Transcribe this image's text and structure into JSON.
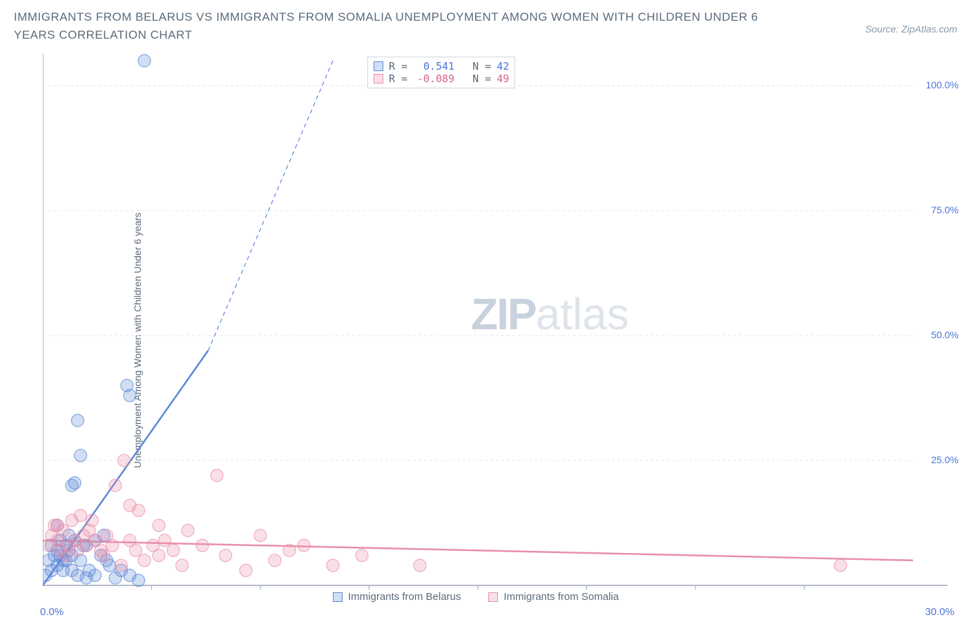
{
  "header": {
    "title": "IMMIGRANTS FROM BELARUS VS IMMIGRANTS FROM SOMALIA UNEMPLOYMENT AMONG WOMEN WITH CHILDREN UNDER 6 YEARS CORRELATION CHART",
    "source": "Source: ZipAtlas.com"
  },
  "ylabel": "Unemployment Among Women with Children Under 6 years",
  "watermark": {
    "bold": "ZIP",
    "light": "atlas"
  },
  "chart": {
    "type": "scatter",
    "xlim": [
      0,
      30
    ],
    "ylim": [
      0,
      105
    ],
    "xticks": [
      0,
      30
    ],
    "xtick_labels": [
      "0.0%",
      "30.0%"
    ],
    "yticks": [
      25,
      50,
      75,
      100
    ],
    "ytick_labels": [
      "25.0%",
      "50.0%",
      "75.0%",
      "100.0%"
    ],
    "minor_xticks": [
      3.75,
      7.5,
      11.25,
      15,
      18.75,
      22.5,
      26.25
    ],
    "grid_color": "#e2e6ec",
    "axis_color": "#9aa6b4",
    "background_color": "#ffffff",
    "marker_radius": 9,
    "marker_fill_opacity": 0.28,
    "marker_stroke_opacity": 0.7,
    "series": [
      {
        "key": "belarus",
        "label": "Immigrants from Belarus",
        "color": "#5b87d6",
        "R": "0.541",
        "N": "42",
        "trend": {
          "x1": 0,
          "y1": 0,
          "x2": 5.7,
          "y2": 47,
          "x2_dash": 10,
          "y2_dash": 105
        },
        "points": [
          [
            0.1,
            2
          ],
          [
            0.2,
            5
          ],
          [
            0.3,
            8
          ],
          [
            0.3,
            3
          ],
          [
            0.4,
            6
          ],
          [
            0.5,
            7
          ],
          [
            0.5,
            12
          ],
          [
            0.6,
            9
          ],
          [
            0.7,
            5
          ],
          [
            0.8,
            8
          ],
          [
            0.9,
            10
          ],
          [
            1.0,
            3
          ],
          [
            1.0,
            6
          ],
          [
            1.1,
            9
          ],
          [
            1.2,
            2
          ],
          [
            1.3,
            5
          ],
          [
            1.4,
            8
          ],
          [
            1.5,
            1.5
          ],
          [
            1.6,
            3
          ],
          [
            1.8,
            2
          ],
          [
            2.0,
            6
          ],
          [
            2.1,
            10
          ],
          [
            2.3,
            4
          ],
          [
            2.5,
            1.5
          ],
          [
            2.7,
            3
          ],
          [
            3.0,
            2
          ],
          [
            3.3,
            1
          ],
          [
            1.0,
            20
          ],
          [
            1.1,
            20.5
          ],
          [
            1.2,
            33
          ],
          [
            1.3,
            26
          ],
          [
            2.9,
            40
          ],
          [
            3.0,
            38
          ],
          [
            3.5,
            105
          ],
          [
            0.5,
            4
          ],
          [
            0.6,
            6
          ],
          [
            0.7,
            3
          ],
          [
            0.8,
            5
          ],
          [
            0.9,
            7
          ],
          [
            1.5,
            8
          ],
          [
            1.8,
            9
          ],
          [
            2.2,
            5
          ]
        ]
      },
      {
        "key": "somalia",
        "label": "Immigrants from Somalia",
        "color": "#e98fa8",
        "R": "-0.089",
        "N": "49",
        "trend": {
          "x1": 0,
          "y1": 9,
          "x2": 30,
          "y2": 5
        },
        "points": [
          [
            0.2,
            8
          ],
          [
            0.3,
            10
          ],
          [
            0.4,
            12
          ],
          [
            0.5,
            9
          ],
          [
            0.6,
            7
          ],
          [
            0.7,
            11
          ],
          [
            0.8,
            6
          ],
          [
            0.9,
            8
          ],
          [
            1.0,
            13
          ],
          [
            1.1,
            9
          ],
          [
            1.2,
            7
          ],
          [
            1.3,
            14
          ],
          [
            1.4,
            10
          ],
          [
            1.5,
            8
          ],
          [
            1.6,
            11
          ],
          [
            1.8,
            9
          ],
          [
            2.0,
            7
          ],
          [
            2.2,
            10
          ],
          [
            2.4,
            8
          ],
          [
            2.5,
            20
          ],
          [
            2.7,
            4
          ],
          [
            3.0,
            9
          ],
          [
            3.0,
            16
          ],
          [
            3.2,
            7
          ],
          [
            3.3,
            15
          ],
          [
            3.5,
            5
          ],
          [
            3.8,
            8
          ],
          [
            4.0,
            6
          ],
          [
            4.0,
            12
          ],
          [
            4.2,
            9
          ],
          [
            4.5,
            7
          ],
          [
            4.8,
            4
          ],
          [
            5.0,
            11
          ],
          [
            5.5,
            8
          ],
          [
            6.0,
            22
          ],
          [
            6.3,
            6
          ],
          [
            7.0,
            3
          ],
          [
            7.5,
            10
          ],
          [
            8.0,
            5
          ],
          [
            8.5,
            7
          ],
          [
            9.0,
            8
          ],
          [
            10.0,
            4
          ],
          [
            11.0,
            6
          ],
          [
            13.0,
            4
          ],
          [
            27.5,
            4
          ],
          [
            2.8,
            25
          ],
          [
            1.7,
            13
          ],
          [
            2.1,
            6
          ],
          [
            0.5,
            12
          ]
        ]
      }
    ]
  },
  "stats_box": {
    "r_label": "R =",
    "n_label": "N ="
  },
  "colors": {
    "title": "#5a6a7a",
    "axis_text": "#4a74d8",
    "pink_text": "#d6648a"
  }
}
